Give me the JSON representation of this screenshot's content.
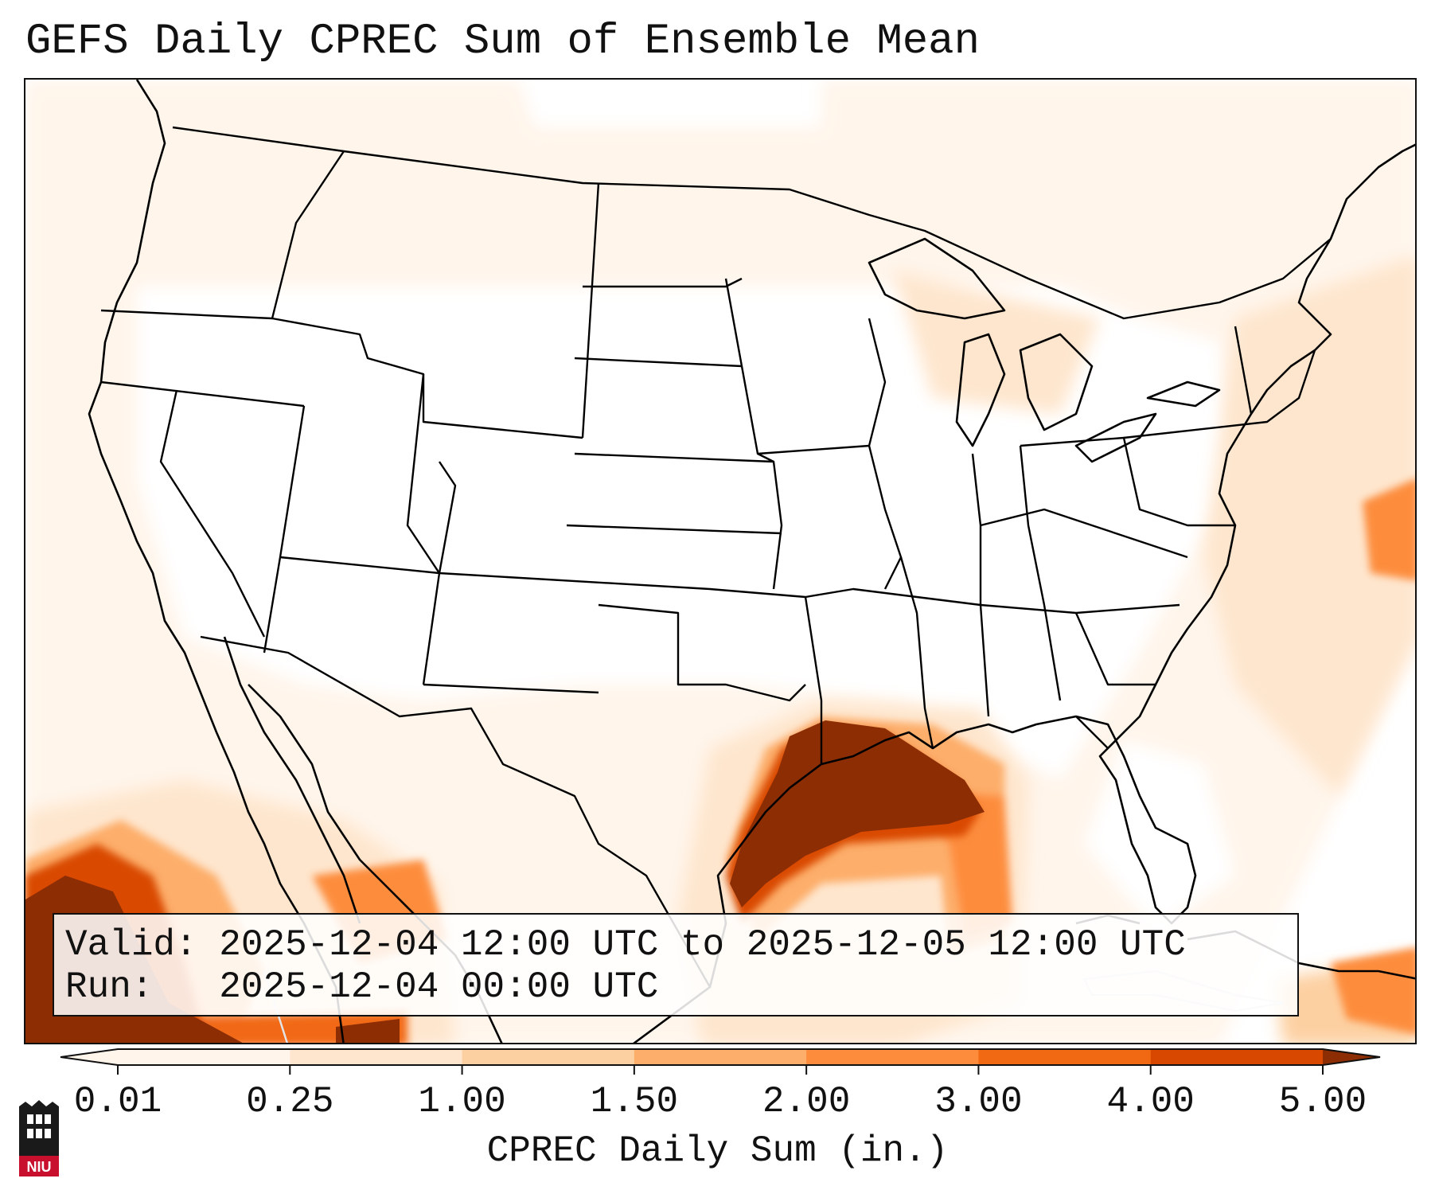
{
  "title": "GEFS Daily CPREC Sum of Ensemble Mean",
  "info": {
    "valid_label": "Valid:",
    "valid_value": "2025-12-04 12:00 UTC to 2025-12-05 12:00 UTC",
    "run_label": "Run:",
    "run_value": "2025-12-04 00:00 UTC"
  },
  "colorbar": {
    "label": "CPREC Daily Sum (in.)",
    "ticks": [
      "0.01",
      "0.25",
      "1.00",
      "1.50",
      "2.00",
      "3.00",
      "4.00",
      "5.00"
    ],
    "colors": [
      "#fff5eb",
      "#fee6ce",
      "#fdd0a2",
      "#fdae6b",
      "#fd8d3c",
      "#f16913",
      "#d94801",
      "#8c2d04"
    ],
    "extend": "both"
  },
  "map": {
    "projection": "Lambert conformal (CONUS)",
    "coastline_color": "#000000",
    "faint_features": "Mexico, Cuba, Bahamas"
  },
  "logo": {
    "text": "NIU",
    "icon": "niu-logo-icon"
  }
}
